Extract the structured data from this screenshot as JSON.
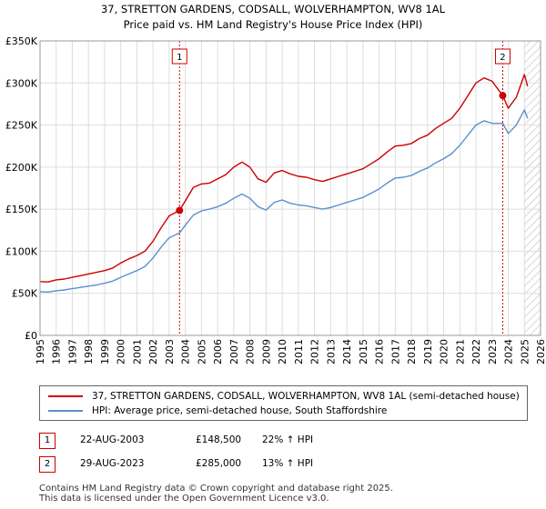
{
  "chart_data": {
    "type": "line",
    "title": "37, STRETTON GARDENS, CODSALL, WOLVERHAMPTON, WV8 1AL",
    "subtitle": "Price paid vs. HM Land Registry's House Price Index (HPI)",
    "xlim": [
      1995,
      2026
    ],
    "ylim": [
      0,
      350000
    ],
    "x_ticks": [
      "1995",
      "1996",
      "1997",
      "1998",
      "1999",
      "2000",
      "2001",
      "2002",
      "2003",
      "2004",
      "2005",
      "2006",
      "2007",
      "2008",
      "2009",
      "2010",
      "2011",
      "2012",
      "2013",
      "2014",
      "2015",
      "2016",
      "2017",
      "2018",
      "2019",
      "2020",
      "2021",
      "2022",
      "2023",
      "2024",
      "2025",
      "2026"
    ],
    "y_ticks": [
      {
        "value": 0,
        "label": "£0"
      },
      {
        "value": 50000,
        "label": "£50K"
      },
      {
        "value": 100000,
        "label": "£100K"
      },
      {
        "value": 150000,
        "label": "£150K"
      },
      {
        "value": 200000,
        "label": "£200K"
      },
      {
        "value": 250000,
        "label": "£250K"
      },
      {
        "value": 300000,
        "label": "£300K"
      },
      {
        "value": 350000,
        "label": "£350K"
      }
    ],
    "hatch_from": 2025.0,
    "series": [
      {
        "name": "37, STRETTON GARDENS, CODSALL, WOLVERHAMPTON, WV8 1AL (semi-detached house)",
        "color": "#cc0000",
        "x": [
          1995.0,
          1995.5,
          1996.0,
          1996.5,
          1997.0,
          1997.5,
          1998.0,
          1998.5,
          1999.0,
          1999.5,
          2000.0,
          2000.5,
          2001.0,
          2001.5,
          2002.0,
          2002.5,
          2003.0,
          2003.64,
          2004.0,
          2004.5,
          2005.0,
          2005.5,
          2006.0,
          2006.5,
          2007.0,
          2007.5,
          2008.0,
          2008.5,
          2009.0,
          2009.5,
          2010.0,
          2010.5,
          2011.0,
          2011.5,
          2012.0,
          2012.5,
          2013.0,
          2013.5,
          2014.0,
          2014.5,
          2015.0,
          2015.5,
          2016.0,
          2016.5,
          2017.0,
          2017.5,
          2018.0,
          2018.5,
          2019.0,
          2019.5,
          2020.0,
          2020.5,
          2021.0,
          2021.5,
          2022.0,
          2022.5,
          2023.0,
          2023.66,
          2024.0,
          2024.5,
          2025.0,
          2025.2
        ],
        "values": [
          64000,
          63500,
          66000,
          67000,
          69000,
          71000,
          73000,
          75000,
          77000,
          80000,
          86000,
          91000,
          95000,
          100000,
          112000,
          128000,
          142000,
          148500,
          160000,
          176000,
          180000,
          181000,
          186000,
          191000,
          200000,
          206000,
          200000,
          186000,
          182000,
          193000,
          196000,
          192000,
          189000,
          188000,
          185000,
          183000,
          186000,
          189000,
          192000,
          195000,
          198000,
          204000,
          210000,
          218000,
          225000,
          226000,
          228000,
          234000,
          238000,
          246000,
          252000,
          258000,
          270000,
          285000,
          300000,
          306000,
          302000,
          285000,
          270000,
          283000,
          310000,
          296000
        ]
      },
      {
        "name": "HPI: Average price, semi-detached house, South Staffordshire",
        "color": "#5b8fd0",
        "x": [
          1995.0,
          1995.5,
          1996.0,
          1996.5,
          1997.0,
          1997.5,
          1998.0,
          1998.5,
          1999.0,
          1999.5,
          2000.0,
          2000.5,
          2001.0,
          2001.5,
          2002.0,
          2002.5,
          2003.0,
          2003.64,
          2004.0,
          2004.5,
          2005.0,
          2005.5,
          2006.0,
          2006.5,
          2007.0,
          2007.5,
          2008.0,
          2008.5,
          2009.0,
          2009.5,
          2010.0,
          2010.5,
          2011.0,
          2011.5,
          2012.0,
          2012.5,
          2013.0,
          2013.5,
          2014.0,
          2014.5,
          2015.0,
          2015.5,
          2016.0,
          2016.5,
          2017.0,
          2017.5,
          2018.0,
          2018.5,
          2019.0,
          2019.5,
          2020.0,
          2020.5,
          2021.0,
          2021.5,
          2022.0,
          2022.5,
          2023.0,
          2023.66,
          2024.0,
          2024.5,
          2025.0,
          2025.2
        ],
        "values": [
          52000,
          51500,
          53000,
          54000,
          55500,
          57000,
          58500,
          60000,
          62000,
          64500,
          69000,
          73000,
          77000,
          82000,
          92000,
          105000,
          116000,
          121700,
          131000,
          143000,
          148000,
          150000,
          153000,
          157000,
          163000,
          168000,
          163000,
          153000,
          149000,
          158000,
          161000,
          157000,
          155000,
          154000,
          152000,
          150000,
          152000,
          155000,
          158000,
          161000,
          164000,
          169000,
          174000,
          181000,
          187000,
          188000,
          190000,
          195000,
          199000,
          205000,
          210000,
          216000,
          226000,
          238000,
          250000,
          255000,
          252000,
          252000,
          240000,
          250000,
          268000,
          258000
        ]
      }
    ],
    "sales": [
      {
        "label": "1",
        "x": 2003.64,
        "value": 148500
      },
      {
        "label": "2",
        "x": 2023.66,
        "value": 285000
      }
    ]
  },
  "legend": {
    "property": "37, STRETTON GARDENS, CODSALL, WOLVERHAMPTON, WV8 1AL (semi-detached house)",
    "hpi": "HPI: Average price, semi-detached house, South Staffordshire"
  },
  "sales_table": [
    {
      "num": "1",
      "date": "22-AUG-2003",
      "price": "£148,500",
      "hpi": "22% ↑ HPI"
    },
    {
      "num": "2",
      "date": "29-AUG-2023",
      "price": "£285,000",
      "hpi": "13% ↑ HPI"
    }
  ],
  "footer": {
    "line1": "Contains HM Land Registry data © Crown copyright and database right 2025.",
    "line2": "This data is licensed under the Open Government Licence v3.0."
  },
  "colors": {
    "property": "#cc0000",
    "hpi": "#5b8fd0",
    "grid": "#dddddd",
    "plot_bg": "#ffffff"
  }
}
